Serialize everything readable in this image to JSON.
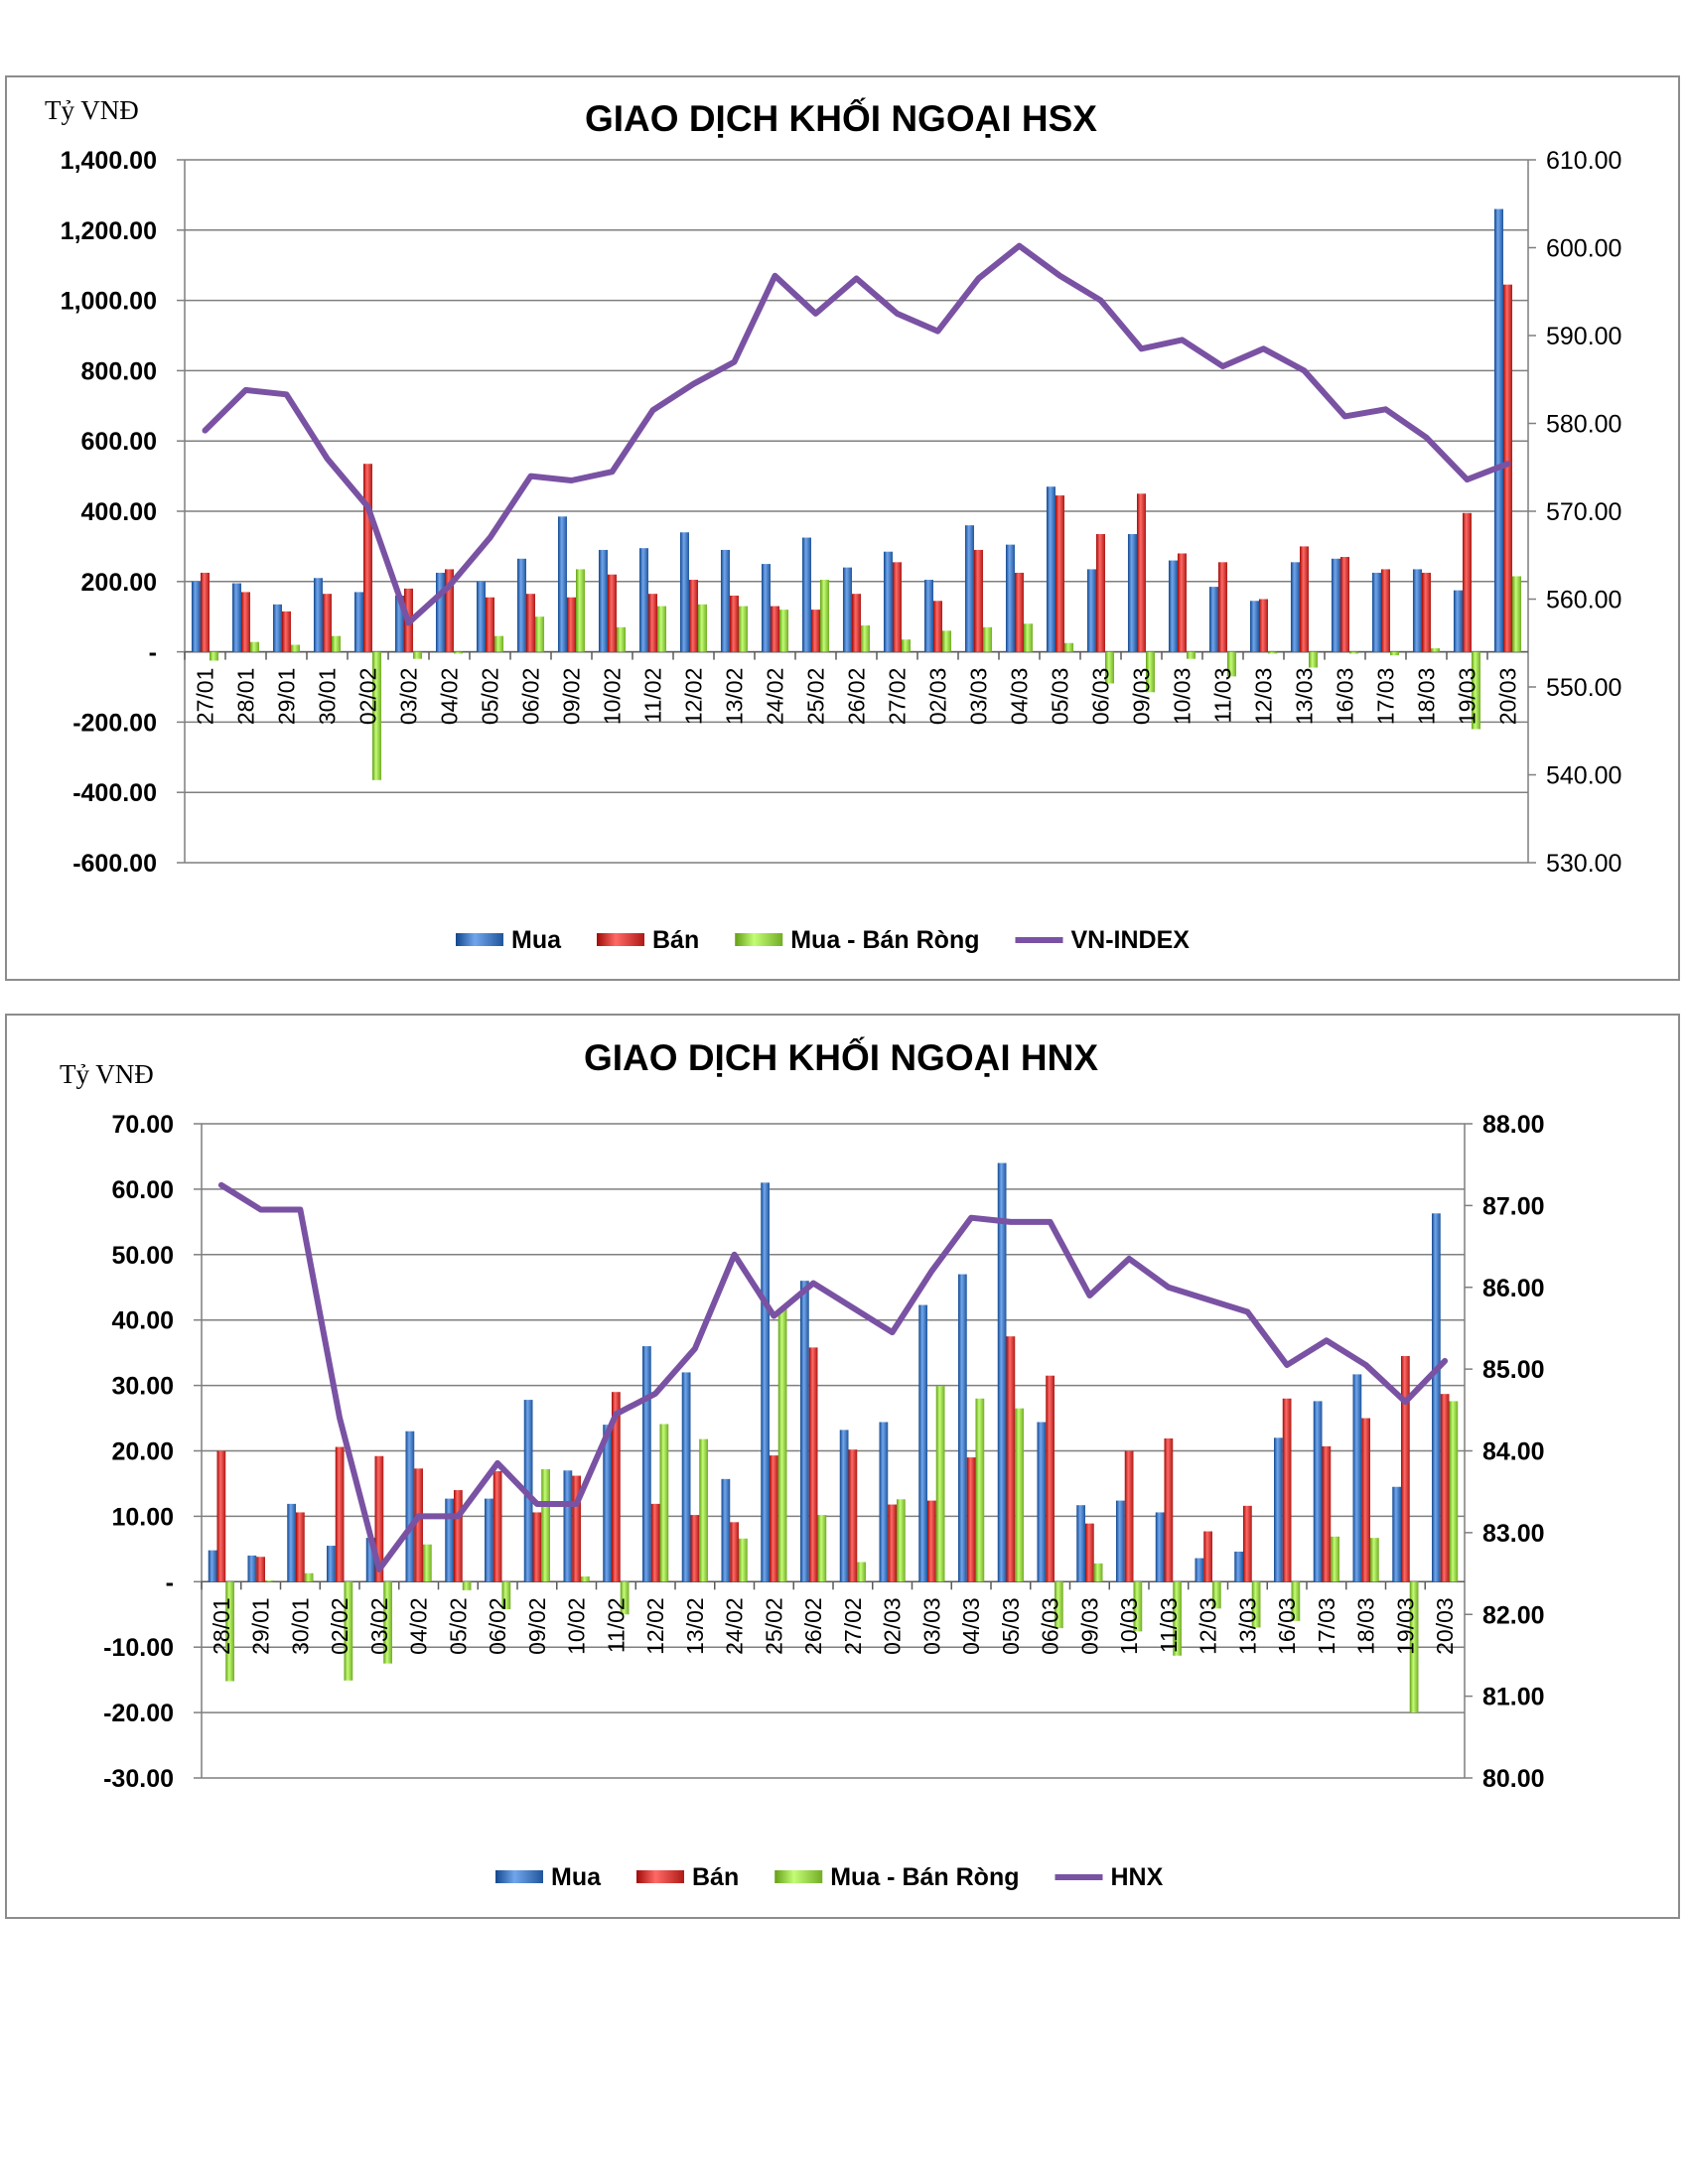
{
  "chart_data": [
    {
      "type": "bar",
      "title": "GIAO DỊCH KHỐI NGOẠI HSX",
      "unit_label": "Tỷ VNĐ",
      "categories": [
        "27/01",
        "28/01",
        "29/01",
        "30/01",
        "02/02",
        "03/02",
        "04/02",
        "05/02",
        "06/02",
        "09/02",
        "10/02",
        "11/02",
        "12/02",
        "13/02",
        "24/02",
        "25/02",
        "26/02",
        "27/02",
        "02/03",
        "03/03",
        "04/03",
        "05/03",
        "06/03",
        "09/03",
        "10/03",
        "11/03",
        "12/03",
        "13/03",
        "16/03",
        "17/03",
        "18/03",
        "19/03",
        "20/03"
      ],
      "series": [
        {
          "name": "Mua",
          "kind": "bar",
          "color": "#3a6fb5",
          "values": [
            200,
            195,
            135,
            210,
            170,
            160,
            225,
            200,
            265,
            385,
            290,
            295,
            340,
            290,
            250,
            325,
            240,
            285,
            205,
            360,
            305,
            470,
            235,
            335,
            260,
            185,
            145,
            255,
            265,
            225,
            235,
            175,
            1260
          ]
        },
        {
          "name": "Bán",
          "kind": "bar",
          "color": "#c8332f",
          "values": [
            225,
            170,
            115,
            165,
            535,
            180,
            235,
            155,
            165,
            155,
            220,
            165,
            205,
            160,
            130,
            120,
            165,
            255,
            145,
            290,
            225,
            445,
            335,
            450,
            280,
            255,
            150,
            300,
            270,
            235,
            225,
            395,
            1045
          ]
        },
        {
          "name": "Mua - Bán Ròng",
          "kind": "bar",
          "color": "#8cc63e",
          "values": [
            -25,
            28,
            20,
            45,
            -365,
            -20,
            -5,
            45,
            100,
            235,
            70,
            130,
            135,
            130,
            120,
            205,
            75,
            35,
            60,
            70,
            80,
            25,
            -90,
            -115,
            -20,
            -70,
            -5,
            -45,
            -5,
            -10,
            10,
            -220,
            215
          ]
        },
        {
          "name": "VN-INDEX",
          "kind": "line",
          "axis": "right",
          "color": "#7a52a3",
          "values": [
            579.2,
            583.8,
            583.3,
            576.0,
            570.5,
            557.3,
            561.5,
            567.0,
            574.0,
            573.5,
            574.5,
            581.5,
            584.5,
            587.0,
            596.8,
            592.5,
            596.5,
            592.5,
            590.5,
            596.5,
            600.2,
            596.8,
            594.0,
            588.5,
            589.5,
            586.5,
            588.5,
            586.0,
            580.8,
            581.6,
            578.4,
            573.6,
            575.4
          ]
        }
      ],
      "ylim": [
        -600,
        1400
      ],
      "yticks": [
        "-600.00",
        "-400.00",
        "-200.00",
        "-",
        "200.00",
        "400.00",
        "600.00",
        "800.00",
        "1,000.00",
        "1,200.00",
        "1,400.00"
      ],
      "y2lim": [
        530,
        610
      ],
      "y2ticks": [
        "530.00",
        "540.00",
        "550.00",
        "560.00",
        "570.00",
        "580.00",
        "590.00",
        "600.00",
        "610.00"
      ],
      "grid": true,
      "legend": "bottom"
    },
    {
      "type": "bar",
      "title": "GIAO DỊCH KHỐI NGOẠI HNX",
      "unit_label": "Tỷ VNĐ",
      "categories": [
        "28/01",
        "29/01",
        "30/01",
        "02/02",
        "03/02",
        "04/02",
        "05/02",
        "06/02",
        "09/02",
        "10/02",
        "11/02",
        "12/02",
        "13/02",
        "24/02",
        "25/02",
        "26/02",
        "27/02",
        "02/03",
        "03/03",
        "04/03",
        "05/03",
        "06/03",
        "09/03",
        "10/03",
        "11/03",
        "12/03",
        "13/03",
        "16/03",
        "17/03",
        "18/03",
        "19/03",
        "20/03"
      ],
      "series": [
        {
          "name": "Mua",
          "kind": "bar",
          "color": "#3a6fb5",
          "values": [
            4.8,
            4.0,
            11.9,
            5.5,
            6.7,
            23.0,
            12.7,
            12.7,
            27.8,
            17.0,
            24.0,
            36.0,
            32.0,
            15.7,
            61.0,
            46.0,
            23.2,
            24.4,
            42.3,
            47.0,
            64.0,
            24.4,
            11.7,
            12.4,
            10.6,
            3.6,
            4.6,
            22.0,
            27.6,
            31.7,
            14.5,
            56.3
          ]
        },
        {
          "name": "Bán",
          "kind": "bar",
          "color": "#c8332f",
          "values": [
            20.0,
            3.8,
            10.6,
            20.6,
            19.2,
            17.3,
            14.0,
            16.9,
            10.6,
            16.2,
            29.0,
            11.9,
            10.2,
            9.1,
            19.3,
            35.8,
            20.2,
            11.8,
            12.4,
            19.0,
            37.5,
            31.5,
            8.9,
            20.0,
            21.9,
            7.7,
            11.6,
            28.0,
            20.7,
            25.0,
            34.5,
            28.7
          ]
        },
        {
          "name": "Mua - Bán Ròng",
          "kind": "bar",
          "color": "#8cc63e",
          "values": [
            -15.2,
            0.2,
            1.3,
            -15.1,
            -12.5,
            5.7,
            -1.3,
            -4.2,
            17.2,
            0.8,
            -5.0,
            24.1,
            21.8,
            6.6,
            41.7,
            10.2,
            3.0,
            12.6,
            29.9,
            28.0,
            26.5,
            -7.1,
            2.8,
            -7.6,
            -11.3,
            -4.1,
            -7.0,
            -6.0,
            6.9,
            6.7,
            -20.0,
            27.6
          ]
        },
        {
          "name": "HNX",
          "kind": "line",
          "axis": "right",
          "color": "#7a52a3",
          "values": [
            87.25,
            86.95,
            86.95,
            84.4,
            82.55,
            83.2,
            83.2,
            83.85,
            83.35,
            83.35,
            84.45,
            84.7,
            85.25,
            86.4,
            85.65,
            86.05,
            85.75,
            85.45,
            86.2,
            86.85,
            86.8,
            86.8,
            85.9,
            86.35,
            86.0,
            85.85,
            85.7,
            85.05,
            85.35,
            85.05,
            84.6,
            85.1
          ]
        }
      ],
      "ylim": [
        -30,
        70
      ],
      "yticks": [
        "-30.00",
        "-20.00",
        "-10.00",
        "-",
        "10.00",
        "20.00",
        "30.00",
        "40.00",
        "50.00",
        "60.00",
        "70.00"
      ],
      "y2lim": [
        80,
        88
      ],
      "y2ticks": [
        "80.00",
        "81.00",
        "82.00",
        "83.00",
        "84.00",
        "85.00",
        "86.00",
        "87.00",
        "88.00"
      ],
      "grid": true,
      "legend": "bottom"
    }
  ]
}
